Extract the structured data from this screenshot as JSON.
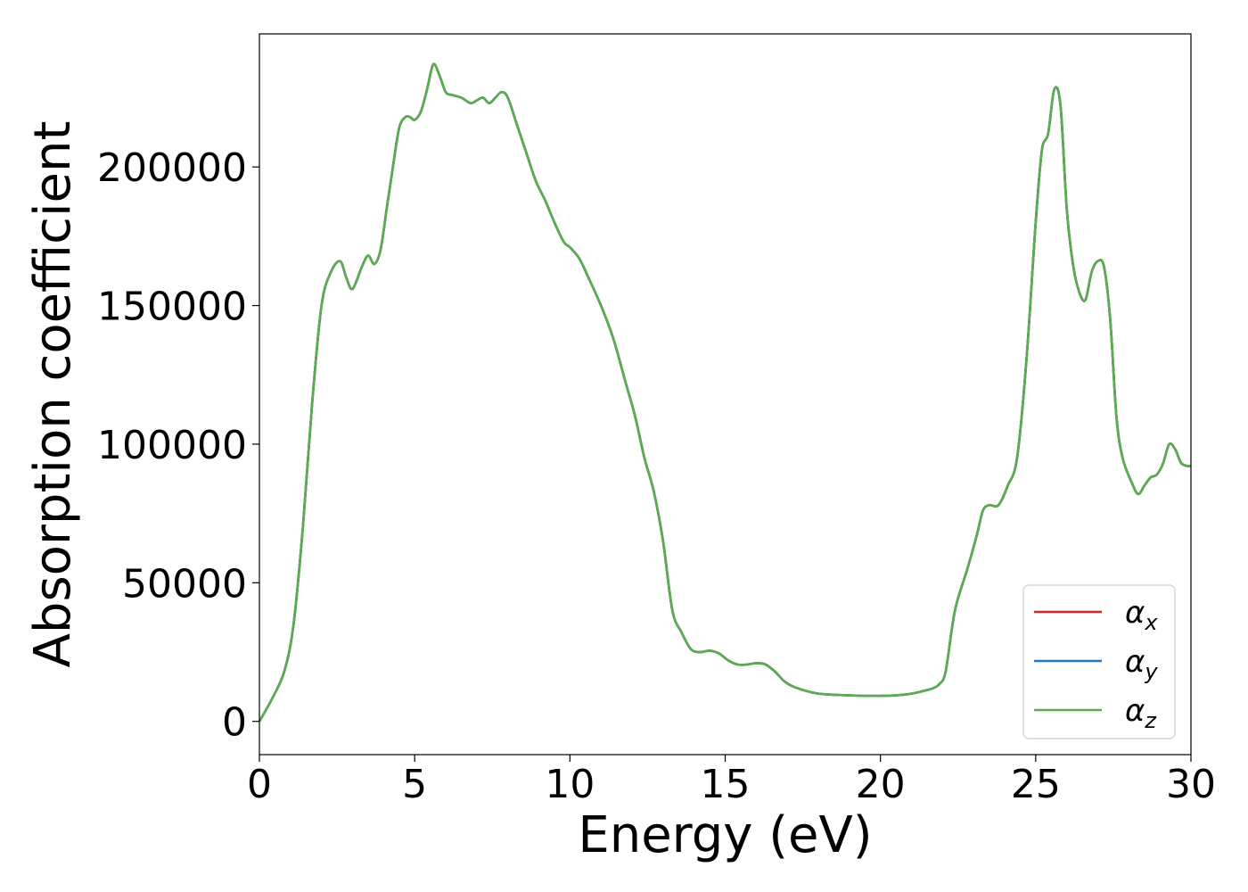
{
  "chart_data": {
    "type": "line",
    "title": "",
    "xlabel": "Energy (eV)",
    "ylabel": "Absorption coefficient",
    "xlim": [
      0,
      30
    ],
    "ylim": [
      -12000,
      248000
    ],
    "xticks": [
      0,
      5,
      10,
      15,
      20,
      25,
      30
    ],
    "xtick_labels": [
      "0",
      "5",
      "10",
      "15",
      "20",
      "25",
      "30"
    ],
    "yticks": [
      0,
      50000,
      100000,
      150000,
      200000
    ],
    "ytick_labels": [
      "0",
      "50000",
      "100000",
      "150000",
      "200000"
    ],
    "grid": false,
    "legend_position": "lower-right",
    "x": [
      0,
      0.4,
      0.8,
      1.1,
      1.4,
      1.7,
      2.0,
      2.3,
      2.6,
      2.8,
      3.0,
      3.3,
      3.5,
      3.7,
      3.9,
      4.1,
      4.3,
      4.5,
      4.7,
      4.85,
      5.0,
      5.2,
      5.4,
      5.6,
      5.8,
      6.0,
      6.2,
      6.5,
      6.8,
      7.0,
      7.2,
      7.4,
      7.6,
      7.8,
      8.0,
      8.3,
      8.6,
      8.9,
      9.2,
      9.5,
      9.8,
      10.0,
      10.3,
      10.6,
      11.0,
      11.4,
      11.8,
      12.1,
      12.4,
      12.7,
      13.0,
      13.3,
      13.6,
      13.9,
      14.2,
      14.5,
      14.8,
      15.1,
      15.4,
      15.7,
      16.0,
      16.3,
      16.6,
      16.9,
      17.2,
      17.6,
      18.0,
      18.5,
      19.0,
      19.5,
      20.0,
      20.5,
      21.0,
      21.4,
      21.7,
      21.9,
      22.1,
      22.4,
      22.8,
      23.1,
      23.3,
      23.5,
      23.8,
      24.1,
      24.4,
      24.7,
      25.0,
      25.2,
      25.4,
      25.6,
      25.8,
      26.0,
      26.2,
      26.4,
      26.6,
      26.8,
      27.0,
      27.2,
      27.4,
      27.6,
      27.8,
      28.1,
      28.3,
      28.5,
      28.7,
      28.9,
      29.1,
      29.3,
      29.5,
      29.7,
      30.0
    ],
    "series": [
      {
        "name": "α_x",
        "color": "#d62728",
        "values": [
          0,
          8000,
          18000,
          35000,
          70000,
          115000,
          150000,
          162000,
          166000,
          160000,
          156000,
          164000,
          168000,
          165000,
          170000,
          185000,
          200000,
          214000,
          218000,
          218000,
          217000,
          220000,
          228000,
          237000,
          233000,
          227000,
          226000,
          225000,
          223000,
          224000,
          225000,
          223000,
          225000,
          227000,
          225000,
          215000,
          205000,
          195000,
          188000,
          180000,
          173000,
          171000,
          167000,
          160000,
          150000,
          138000,
          122000,
          110000,
          95000,
          83000,
          65000,
          40000,
          32000,
          26000,
          25000,
          25500,
          24500,
          22000,
          20500,
          20500,
          21000,
          20500,
          18000,
          14500,
          12500,
          11000,
          10000,
          9600,
          9400,
          9200,
          9200,
          9400,
          10000,
          11000,
          12000,
          13500,
          18000,
          40000,
          55000,
          67000,
          76000,
          78000,
          78000,
          85000,
          95000,
          130000,
          180000,
          206000,
          212000,
          228000,
          222000,
          185000,
          165000,
          155000,
          152000,
          162000,
          166000,
          164000,
          145000,
          110000,
          95000,
          86000,
          82000,
          85000,
          88000,
          89000,
          93000,
          100000,
          98000,
          93000,
          92000
        ]
      },
      {
        "name": "α_y",
        "color": "#1f77b4",
        "values": [
          0,
          8000,
          18000,
          35000,
          70000,
          115000,
          150000,
          162000,
          166000,
          160000,
          156000,
          164000,
          168000,
          165000,
          170000,
          185000,
          200000,
          214000,
          218000,
          218000,
          217000,
          220000,
          228000,
          237000,
          233000,
          227000,
          226000,
          225000,
          223000,
          224000,
          225000,
          223000,
          225000,
          227000,
          225000,
          215000,
          205000,
          195000,
          188000,
          180000,
          173000,
          171000,
          167000,
          160000,
          150000,
          138000,
          122000,
          110000,
          95000,
          83000,
          65000,
          40000,
          32000,
          26000,
          25000,
          25500,
          24500,
          22000,
          20500,
          20500,
          21000,
          20500,
          18000,
          14500,
          12500,
          11000,
          10000,
          9600,
          9400,
          9200,
          9200,
          9400,
          10000,
          11000,
          12000,
          13500,
          18000,
          40000,
          55000,
          67000,
          76000,
          78000,
          78000,
          85000,
          95000,
          130000,
          180000,
          206000,
          212000,
          228000,
          222000,
          185000,
          165000,
          155000,
          152000,
          162000,
          166000,
          164000,
          145000,
          110000,
          95000,
          86000,
          82000,
          85000,
          88000,
          89000,
          93000,
          100000,
          98000,
          93000,
          92000
        ]
      },
      {
        "name": "α_z",
        "color": "#5aad4e",
        "values": [
          0,
          8000,
          18000,
          35000,
          70000,
          115000,
          150000,
          162000,
          166000,
          160000,
          156000,
          164000,
          168000,
          165000,
          170000,
          185000,
          200000,
          214000,
          218000,
          218000,
          217000,
          220000,
          228000,
          237000,
          233000,
          227000,
          226000,
          225000,
          223000,
          224000,
          225000,
          223000,
          225000,
          227000,
          225000,
          215000,
          205000,
          195000,
          188000,
          180000,
          173000,
          171000,
          167000,
          160000,
          150000,
          138000,
          122000,
          110000,
          95000,
          83000,
          65000,
          40000,
          32000,
          26000,
          25000,
          25500,
          24500,
          22000,
          20500,
          20500,
          21000,
          20500,
          18000,
          14500,
          12500,
          11000,
          10000,
          9600,
          9400,
          9200,
          9200,
          9400,
          10000,
          11000,
          12000,
          13500,
          18000,
          40000,
          55000,
          67000,
          76000,
          78000,
          78000,
          85000,
          95000,
          130000,
          180000,
          206000,
          212000,
          228000,
          222000,
          185000,
          165000,
          155000,
          152000,
          162000,
          166000,
          164000,
          145000,
          110000,
          95000,
          86000,
          82000,
          85000,
          88000,
          89000,
          93000,
          100000,
          98000,
          93000,
          92000
        ]
      }
    ],
    "legend": [
      {
        "symbol": "α",
        "subscript": "x",
        "color": "#d62728"
      },
      {
        "symbol": "α",
        "subscript": "y",
        "color": "#1f77b4"
      },
      {
        "symbol": "α",
        "subscript": "z",
        "color": "#5aad4e"
      }
    ]
  }
}
